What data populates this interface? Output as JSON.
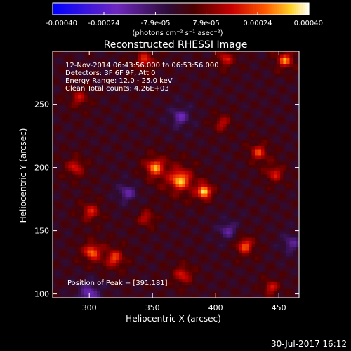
{
  "chart_data": {
    "type": "heatmap",
    "title": "Reconstructed RHESSI Image",
    "xlabel": "Heliocentric X (arcsec)",
    "ylabel": "Heliocentric Y (arcsec)",
    "xlim": [
      271,
      466
    ],
    "ylim": [
      97,
      292
    ],
    "x_ticks": [
      300,
      350,
      400,
      450
    ],
    "y_ticks": [
      100,
      150,
      200,
      250
    ],
    "colorbar": {
      "min": -0.0004,
      "max": 0.0004,
      "ticks": [
        -0.0004,
        -0.00024,
        -7.9e-05,
        7.9e-05,
        0.00024,
        0.0004
      ],
      "tick_labels": [
        "-0.00040",
        "-0.00024",
        "-7.9e-05",
        "7.9e-05",
        "0.00024",
        "0.00040"
      ],
      "unit_label": "(photons cm⁻² s⁻¹ asec⁻²)"
    },
    "info_lines": [
      "12-Nov-2014 06:43:56.000 to 06:53:56.000",
      "Detectors: 3F 6F 9F, Att 0",
      "Energy Range: 12.0 - 25.0 keV",
      "Clean     Total counts: 4.26E+03"
    ],
    "peak_label": "Position of Peak = [391,181]",
    "peak_position": [
      391,
      181
    ],
    "sources": [
      {
        "x": 391,
        "y": 181,
        "amp": 0.0004,
        "w": 7
      },
      {
        "x": 372,
        "y": 190,
        "amp": 0.00034,
        "w": 12
      },
      {
        "x": 352,
        "y": 200,
        "amp": 0.0003,
        "w": 10
      },
      {
        "x": 302,
        "y": 133,
        "amp": 0.00028,
        "w": 9
      },
      {
        "x": 320,
        "y": 128,
        "amp": 0.00022,
        "w": 10
      },
      {
        "x": 344,
        "y": 285,
        "amp": 0.0002,
        "w": 10
      },
      {
        "x": 408,
        "y": 286,
        "amp": 0.00018,
        "w": 9
      },
      {
        "x": 455,
        "y": 285,
        "amp": 0.0003,
        "w": 8
      },
      {
        "x": 434,
        "y": 212,
        "amp": 0.00022,
        "w": 9
      },
      {
        "x": 447,
        "y": 195,
        "amp": 0.00018,
        "w": 9
      },
      {
        "x": 423,
        "y": 138,
        "amp": 0.00026,
        "w": 9
      },
      {
        "x": 444,
        "y": 105,
        "amp": 0.00018,
        "w": 8
      },
      {
        "x": 289,
        "y": 200,
        "amp": 0.00018,
        "w": 10
      },
      {
        "x": 301,
        "y": 165,
        "amp": 0.00018,
        "w": 10
      },
      {
        "x": 374,
        "y": 115,
        "amp": 0.00018,
        "w": 10
      },
      {
        "x": 345,
        "y": 160,
        "amp": 0.00016,
        "w": 9
      },
      {
        "x": 292,
        "y": 255,
        "amp": 0.00015,
        "w": 10
      },
      {
        "x": 405,
        "y": 235,
        "amp": 0.00015,
        "w": 9
      },
      {
        "x": 300,
        "y": 100,
        "amp": -0.0002,
        "w": 11
      },
      {
        "x": 372,
        "y": 240,
        "amp": -0.00018,
        "w": 10
      },
      {
        "x": 410,
        "y": 150,
        "amp": -0.00016,
        "w": 10
      },
      {
        "x": 330,
        "y": 180,
        "amp": -0.00016,
        "w": 10
      },
      {
        "x": 460,
        "y": 140,
        "amp": -0.00014,
        "w": 10
      }
    ]
  },
  "footer": {
    "date": "30-Jul-2017 16:12"
  }
}
